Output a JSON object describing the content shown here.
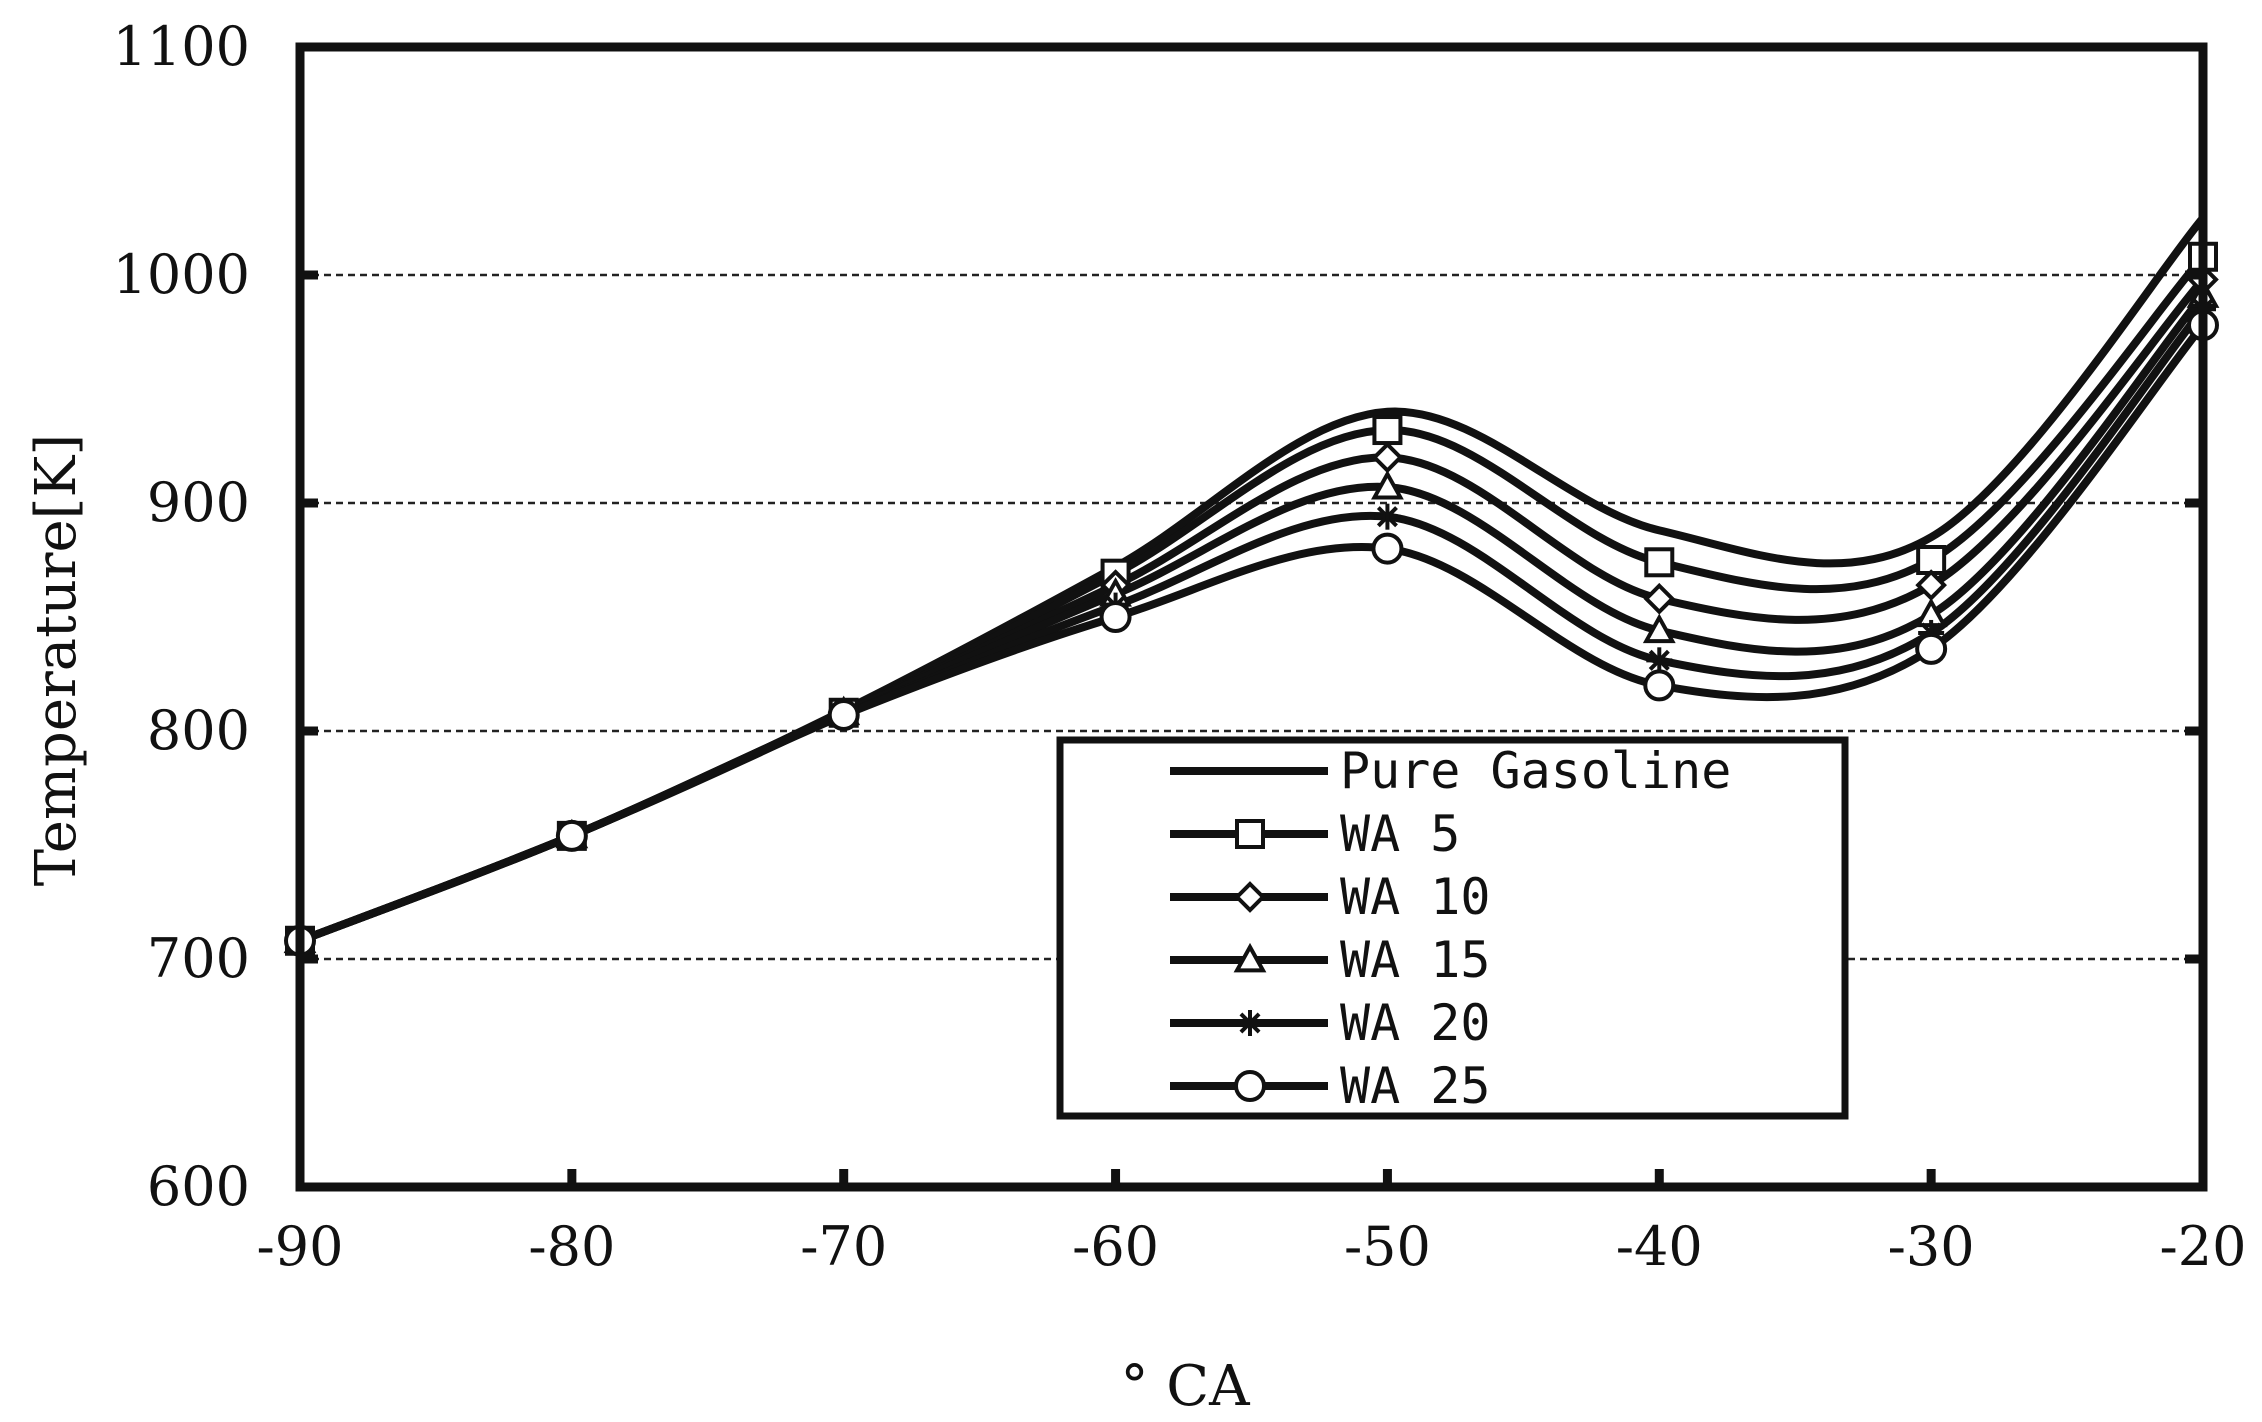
{
  "chart_data": {
    "type": "line",
    "title": "",
    "xlabel": "° CA",
    "ylabel": "Temperature[K]",
    "xlim": [
      -90,
      -20
    ],
    "ylim": [
      600,
      1100
    ],
    "x_ticks": [
      -90,
      -80,
      -70,
      -60,
      -50,
      -40,
      -30,
      -20
    ],
    "y_ticks": [
      600,
      700,
      800,
      900,
      1000,
      1100
    ],
    "x_tick_labels": [
      "-90",
      "-80",
      "-70",
      "-60",
      "-50",
      "-40",
      "-30",
      "-20"
    ],
    "y_tick_labels": [
      "600",
      "700",
      "800",
      "900",
      "1000",
      "1100"
    ],
    "grid": "horizontal dashed",
    "legend_position": "center-bottom",
    "x": [
      -90,
      -80,
      -70,
      -60,
      -50,
      -40,
      -30,
      -20
    ],
    "series": [
      {
        "name": "Pure Gasoline",
        "marker": "none",
        "values": [
          708,
          754,
          809,
          872,
          940,
          888,
          885,
          1025
        ]
      },
      {
        "name": "WA 5",
        "marker": "square",
        "values": [
          708,
          754,
          808,
          869,
          932,
          874,
          875,
          1008
        ]
      },
      {
        "name": "WA 10",
        "marker": "diamond",
        "values": [
          708,
          754,
          808,
          864,
          920,
          858,
          864,
          998
        ]
      },
      {
        "name": "WA 15",
        "marker": "triangle",
        "values": [
          708,
          754,
          808,
          860,
          907,
          844,
          851,
          991
        ]
      },
      {
        "name": "WA 20",
        "marker": "star",
        "values": [
          708,
          754,
          807,
          855,
          894,
          831,
          843,
          985
        ]
      },
      {
        "name": "WA 25",
        "marker": "circle",
        "values": [
          708,
          754,
          807,
          850,
          880,
          820,
          836,
          978
        ]
      }
    ]
  }
}
